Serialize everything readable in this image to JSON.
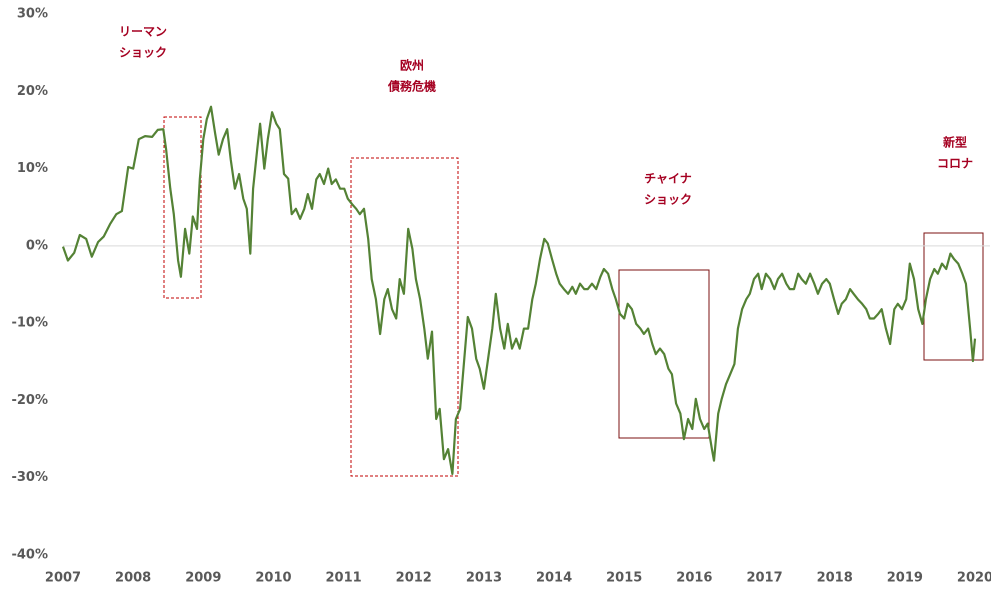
{
  "chart_data": {
    "type": "line",
    "color": "#548235",
    "xlim": [
      2007,
      2020
    ],
    "xticks": [
      2007,
      2008,
      2009,
      2010,
      2011,
      2012,
      2013,
      2014,
      2015,
      2016,
      2017,
      2018,
      2019,
      2020
    ],
    "ylim": [
      -40,
      30
    ],
    "yticks": [
      {
        "value": 30,
        "label": "30%"
      },
      {
        "value": 20,
        "label": "20%"
      },
      {
        "value": 10,
        "label": "10%"
      },
      {
        "value": 0,
        "label": "0%"
      },
      {
        "value": -10,
        "label": "-10%"
      },
      {
        "value": -20,
        "label": "-20%"
      },
      {
        "value": -30,
        "label": "-30%"
      },
      {
        "value": -40,
        "label": "-40%"
      }
    ],
    "annotations": [
      {
        "lines": [
          "リーマン",
          "ショック"
        ]
      },
      {
        "lines": [
          "欧州",
          "債務危機"
        ]
      },
      {
        "lines": [
          "チャイナ",
          "ショック"
        ]
      },
      {
        "lines": [
          "新型",
          "コロナ"
        ]
      }
    ],
    "x": [
      2007.0,
      2007.07,
      2007.16,
      2007.24,
      2007.33,
      2007.41,
      2007.5,
      2007.58,
      2007.67,
      2007.76,
      2007.84,
      2007.93,
      2008.0,
      2008.08,
      2008.17,
      2008.27,
      2008.35,
      2008.43,
      2008.47,
      2008.53,
      2008.58,
      2008.64,
      2008.68,
      2008.74,
      2008.8,
      2008.85,
      2008.91,
      2008.95,
      2009.0,
      2009.05,
      2009.11,
      2009.17,
      2009.22,
      2009.28,
      2009.34,
      2009.39,
      2009.45,
      2009.51,
      2009.57,
      2009.62,
      2009.67,
      2009.71,
      2009.77,
      2009.81,
      2009.87,
      2009.92,
      2009.98,
      2010.04,
      2010.09,
      2010.15,
      2010.21,
      2010.26,
      2010.32,
      2010.38,
      2010.44,
      2010.49,
      2010.55,
      2010.61,
      2010.66,
      2010.72,
      2010.78,
      2010.83,
      2010.89,
      2010.95,
      2011.01,
      2011.06,
      2011.12,
      2011.18,
      2011.23,
      2011.29,
      2011.35,
      2011.4,
      2011.46,
      2011.52,
      2011.58,
      2011.63,
      2011.69,
      2011.75,
      2011.8,
      2011.86,
      2011.92,
      2011.98,
      2012.03,
      2012.09,
      2012.15,
      2012.2,
      2012.26,
      2012.32,
      2012.37,
      2012.43,
      2012.49,
      2012.55,
      2012.6,
      2012.66,
      2012.72,
      2012.77,
      2012.83,
      2012.89,
      2012.94,
      2013.0,
      2013.06,
      2013.12,
      2013.17,
      2013.23,
      2013.29,
      2013.34,
      2013.4,
      2013.46,
      2013.51,
      2013.57,
      2013.63,
      2013.69,
      2013.74,
      2013.8,
      2013.86,
      2013.91,
      2013.97,
      2014.03,
      2014.08,
      2014.14,
      2014.2,
      2014.26,
      2014.31,
      2014.37,
      2014.43,
      2014.48,
      2014.54,
      2014.6,
      2014.66,
      2014.71,
      2014.77,
      2014.83,
      2014.88,
      2014.94,
      2015.0,
      2015.05,
      2015.11,
      2015.17,
      2015.23,
      2015.28,
      2015.34,
      2015.4,
      2015.45,
      2015.51,
      2015.57,
      2015.63,
      2015.68,
      2015.74,
      2015.8,
      2015.85,
      2015.91,
      2015.97,
      2016.02,
      2016.08,
      2016.14,
      2016.19,
      2016.25,
      2016.28,
      2016.34,
      2016.39,
      2016.45,
      2016.51,
      2016.57,
      2016.62,
      2016.68,
      2016.74,
      2016.79,
      2016.85,
      2016.91,
      2016.96,
      2017.02,
      2017.08,
      2017.14,
      2017.19,
      2017.25,
      2017.31,
      2017.36,
      2017.42,
      2017.48,
      2017.53,
      2017.59,
      2017.65,
      2017.71,
      2017.76,
      2017.82,
      2017.88,
      2017.93,
      2017.99,
      2018.05,
      2018.1,
      2018.16,
      2018.22,
      2018.27,
      2018.33,
      2018.39,
      2018.45,
      2018.5,
      2018.56,
      2018.62,
      2018.67,
      2018.73,
      2018.79,
      2018.85,
      2018.9,
      2018.96,
      2019.02,
      2019.07,
      2019.13,
      2019.19,
      2019.25,
      2019.3,
      2019.36,
      2019.42,
      2019.47,
      2019.53,
      2019.59,
      2019.65,
      2019.7,
      2019.76,
      2019.82,
      2019.87,
      2019.93,
      2019.97,
      2020.0
    ],
    "values": [
      -0.1,
      -1.9,
      -0.9,
      1.4,
      0.9,
      -1.4,
      0.5,
      1.2,
      2.8,
      4.1,
      4.5,
      10.2,
      10.0,
      13.8,
      14.2,
      14.1,
      15.0,
      15.1,
      12.5,
      7.4,
      4.1,
      -1.9,
      -4.0,
      2.2,
      -1.0,
      3.8,
      2.2,
      8.6,
      13.8,
      16.4,
      18.0,
      14.5,
      11.8,
      13.8,
      15.1,
      11.2,
      7.4,
      9.3,
      6.1,
      4.8,
      -1.0,
      7.4,
      12.6,
      15.8,
      10.0,
      13.8,
      17.3,
      15.8,
      15.1,
      9.3,
      8.7,
      4.1,
      4.8,
      3.5,
      4.8,
      6.7,
      4.8,
      8.6,
      9.3,
      8.0,
      10.0,
      8.0,
      8.6,
      7.4,
      7.4,
      6.1,
      5.4,
      4.8,
      4.1,
      4.8,
      0.9,
      -4.3,
      -6.9,
      -11.4,
      -6.9,
      -5.6,
      -8.2,
      -9.4,
      -4.3,
      -6.2,
      2.2,
      -0.4,
      -4.3,
      -6.9,
      -10.7,
      -14.6,
      -11.1,
      -22.4,
      -21.1,
      -27.6,
      -26.3,
      -29.5,
      -22.4,
      -21.1,
      -14.6,
      -9.2,
      -10.7,
      -14.6,
      -15.9,
      -18.5,
      -14.6,
      -10.7,
      -6.2,
      -10.7,
      -13.3,
      -10.1,
      -13.3,
      -12.0,
      -13.3,
      -10.7,
      -10.7,
      -6.9,
      -4.9,
      -1.7,
      0.9,
      0.3,
      -1.7,
      -3.6,
      -4.9,
      -5.6,
      -6.2,
      -5.3,
      -6.2,
      -4.9,
      -5.6,
      -5.6,
      -4.9,
      -5.6,
      -4.0,
      -3.0,
      -3.6,
      -5.6,
      -6.9,
      -8.8,
      -9.4,
      -7.5,
      -8.2,
      -10.1,
      -10.7,
      -11.4,
      -10.7,
      -12.7,
      -14.0,
      -13.3,
      -14.0,
      -15.9,
      -16.6,
      -20.4,
      -21.7,
      -25.0,
      -22.4,
      -23.7,
      -19.8,
      -22.4,
      -23.7,
      -23.0,
      -26.3,
      -27.8,
      -21.7,
      -19.8,
      -17.9,
      -16.6,
      -15.3,
      -10.7,
      -8.2,
      -6.9,
      -6.2,
      -4.3,
      -3.6,
      -5.6,
      -3.6,
      -4.3,
      -5.6,
      -4.3,
      -3.6,
      -4.9,
      -5.6,
      -5.6,
      -3.6,
      -4.3,
      -4.9,
      -3.6,
      -4.9,
      -6.2,
      -4.9,
      -4.3,
      -4.9,
      -6.9,
      -8.8,
      -7.5,
      -6.9,
      -5.6,
      -6.2,
      -6.9,
      -7.5,
      -8.2,
      -9.4,
      -9.4,
      -8.8,
      -8.2,
      -10.7,
      -12.7,
      -8.2,
      -7.5,
      -8.2,
      -6.9,
      -2.3,
      -4.3,
      -8.2,
      -10.1,
      -6.9,
      -4.3,
      -3.0,
      -3.6,
      -2.3,
      -3.0,
      -1.0,
      -1.7,
      -2.3,
      -3.6,
      -4.9,
      -10.7,
      -14.9,
      -12.0
    ]
  }
}
